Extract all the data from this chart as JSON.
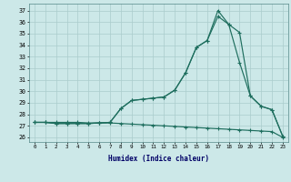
{
  "xlabel": "Humidex (Indice chaleur)",
  "bg_color": "#cce8e8",
  "grid_color": "#aacccc",
  "line_color": "#1e6e5e",
  "x_ticks": [
    0,
    1,
    2,
    3,
    4,
    5,
    6,
    7,
    8,
    9,
    10,
    11,
    12,
    13,
    14,
    15,
    16,
    17,
    18,
    19,
    20,
    21,
    22,
    23
  ],
  "y_ticks": [
    26,
    27,
    28,
    29,
    30,
    31,
    32,
    33,
    34,
    35,
    36,
    37
  ],
  "ylim": [
    25.6,
    37.6
  ],
  "xlim": [
    -0.5,
    23.5
  ],
  "line_min_x": [
    0,
    1,
    2,
    3,
    4,
    5,
    6,
    7,
    8,
    9,
    10,
    11,
    12,
    13,
    14,
    15,
    16,
    17,
    18,
    19,
    20,
    21,
    22,
    23
  ],
  "line_min_y": [
    27.3,
    27.3,
    27.3,
    27.3,
    27.3,
    27.25,
    27.25,
    27.25,
    27.2,
    27.15,
    27.1,
    27.05,
    27.0,
    26.95,
    26.9,
    26.85,
    26.8,
    26.75,
    26.7,
    26.65,
    26.6,
    26.55,
    26.5,
    26.0
  ],
  "line_max_x": [
    0,
    1,
    2,
    3,
    4,
    5,
    6,
    7,
    8,
    9,
    10,
    11,
    12,
    13,
    14,
    15,
    16,
    17,
    18,
    19,
    20,
    21,
    22,
    23
  ],
  "line_max_y": [
    27.3,
    27.3,
    27.2,
    27.2,
    27.2,
    27.2,
    27.25,
    27.3,
    28.5,
    29.2,
    29.3,
    29.4,
    29.5,
    30.1,
    31.6,
    33.8,
    34.4,
    37.0,
    35.8,
    35.1,
    29.6,
    28.7,
    28.4,
    26.1
  ],
  "line_mid_x": [
    0,
    1,
    2,
    3,
    4,
    5,
    6,
    7,
    8,
    9,
    10,
    11,
    12,
    13,
    14,
    15,
    16,
    17,
    18,
    19,
    20,
    21,
    22,
    23
  ],
  "line_mid_y": [
    27.3,
    27.3,
    27.2,
    27.2,
    27.2,
    27.2,
    27.25,
    27.3,
    28.5,
    29.2,
    29.3,
    29.4,
    29.5,
    30.1,
    31.6,
    33.8,
    34.4,
    36.5,
    35.8,
    32.5,
    29.6,
    28.7,
    28.4,
    26.1
  ]
}
